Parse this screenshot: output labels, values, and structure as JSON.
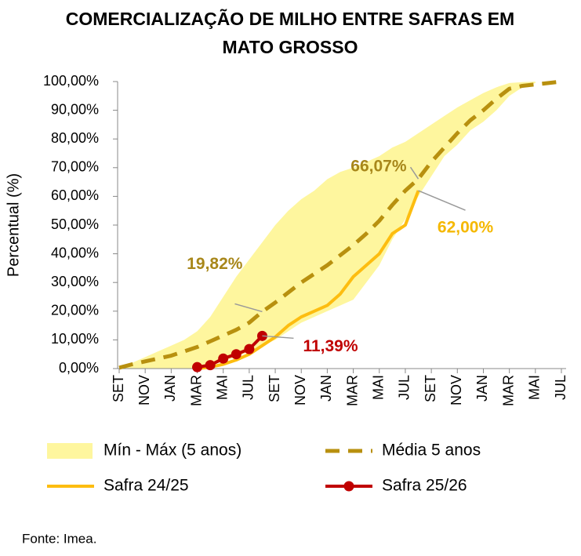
{
  "chart_data": {
    "type": "line",
    "title": [
      "COMERCIALIZAÇÃO DE MILHO ENTRE SAFRAS EM",
      "MATO GROSSO"
    ],
    "y_label": "Percentual (%)",
    "source": "Fonte: Imea.",
    "categories": [
      "SET",
      null,
      "NOV",
      null,
      "JAN",
      null,
      "MAR",
      null,
      "MAI",
      null,
      "JUL",
      null,
      "SET",
      null,
      "NOV",
      null,
      "JAN",
      null,
      "MAR",
      null,
      "MAI",
      null,
      "JUL",
      null,
      "SET",
      null,
      "NOV",
      null,
      "JAN",
      null,
      "MAR",
      null,
      "MAI",
      null,
      "JUL"
    ],
    "ylim": [
      0,
      100
    ],
    "yticks": [
      {
        "value": 0,
        "label": "0,00%"
      },
      {
        "value": 10,
        "label": "10,00%"
      },
      {
        "value": 20,
        "label": "20,00%"
      },
      {
        "value": 30,
        "label": "30,00%"
      },
      {
        "value": 40,
        "label": "40,00%"
      },
      {
        "value": 50,
        "label": "50,00%"
      },
      {
        "value": 60,
        "label": "60,00%"
      },
      {
        "value": 70,
        "label": "70,00%"
      },
      {
        "value": 80,
        "label": "80,00%"
      },
      {
        "value": 90,
        "label": "90,00%"
      },
      {
        "value": 100,
        "label": "100,00%"
      }
    ],
    "series": [
      {
        "name": "Mín - Máx (5 anos)",
        "color": "#fef69e",
        "style": "band",
        "min": [
          0,
          0,
          0,
          0,
          0,
          0,
          0,
          1,
          2.5,
          4,
          6,
          8,
          10,
          13,
          16,
          18,
          20,
          22,
          24,
          30,
          36,
          45,
          52,
          60,
          67,
          74,
          78,
          83,
          86,
          90,
          95,
          98,
          99.5,
          null,
          null
        ],
        "max": [
          0,
          2,
          4,
          6,
          8,
          10,
          13,
          18,
          25,
          32,
          38,
          44,
          50,
          55,
          59,
          62,
          66,
          68.5,
          70,
          72,
          74,
          77,
          79,
          82,
          85,
          88,
          91,
          93.5,
          96,
          98,
          99.5,
          99.8,
          100,
          null,
          null
        ]
      },
      {
        "name": "Média 5 anos",
        "color": "#b8900f",
        "style": "dashed",
        "values": [
          0.3,
          1.5,
          2.5,
          3.5,
          4.5,
          6,
          7.5,
          9.5,
          11.5,
          13.5,
          16,
          19.82,
          23,
          26.5,
          30,
          33,
          36,
          39.5,
          43,
          47,
          51.5,
          57,
          62,
          66.07,
          72,
          77,
          82,
          86.5,
          90,
          94,
          97.5,
          98.5,
          99,
          99.5,
          100
        ],
        "value_labels": [
          null,
          null,
          null,
          null,
          null,
          null,
          null,
          null,
          null,
          null,
          null,
          "19,82%",
          null,
          null,
          null,
          null,
          null,
          null,
          null,
          null,
          null,
          null,
          null,
          "66,07%",
          null,
          null,
          null,
          null,
          null,
          null,
          null,
          null,
          null,
          null,
          null
        ]
      },
      {
        "name": "Safra 24/25",
        "color": "#fdbd10",
        "style": "solid",
        "values": [
          null,
          null,
          null,
          null,
          null,
          null,
          0,
          0.5,
          1.5,
          3,
          5,
          8,
          11,
          15,
          18,
          20,
          22,
          26,
          32,
          36,
          40,
          47,
          50,
          62,
          null,
          null,
          null,
          null,
          null,
          null,
          null,
          null,
          null,
          null,
          null
        ],
        "value_labels": [
          null,
          null,
          null,
          null,
          null,
          null,
          null,
          null,
          null,
          null,
          null,
          null,
          null,
          null,
          null,
          null,
          null,
          null,
          null,
          null,
          null,
          null,
          null,
          "62,00%",
          null,
          null,
          null,
          null,
          null,
          null,
          null,
          null,
          null,
          null,
          null
        ]
      },
      {
        "name": "Safra 25/26",
        "color": "#c00000",
        "style": "markers",
        "values": [
          null,
          null,
          null,
          null,
          null,
          null,
          0.5,
          1.2,
          3.5,
          5,
          6.8,
          11.39,
          null,
          null,
          null,
          null,
          null,
          null,
          null,
          null,
          null,
          null,
          null,
          null,
          null,
          null,
          null,
          null,
          null,
          null,
          null,
          null,
          null,
          null,
          null
        ],
        "value_labels": [
          null,
          null,
          null,
          null,
          null,
          null,
          null,
          null,
          null,
          null,
          null,
          "11,39%",
          null,
          null,
          null,
          null,
          null,
          null,
          null,
          null,
          null,
          null,
          null,
          null,
          null,
          null,
          null,
          null,
          null,
          null,
          null,
          null,
          null,
          null,
          null
        ]
      }
    ]
  }
}
